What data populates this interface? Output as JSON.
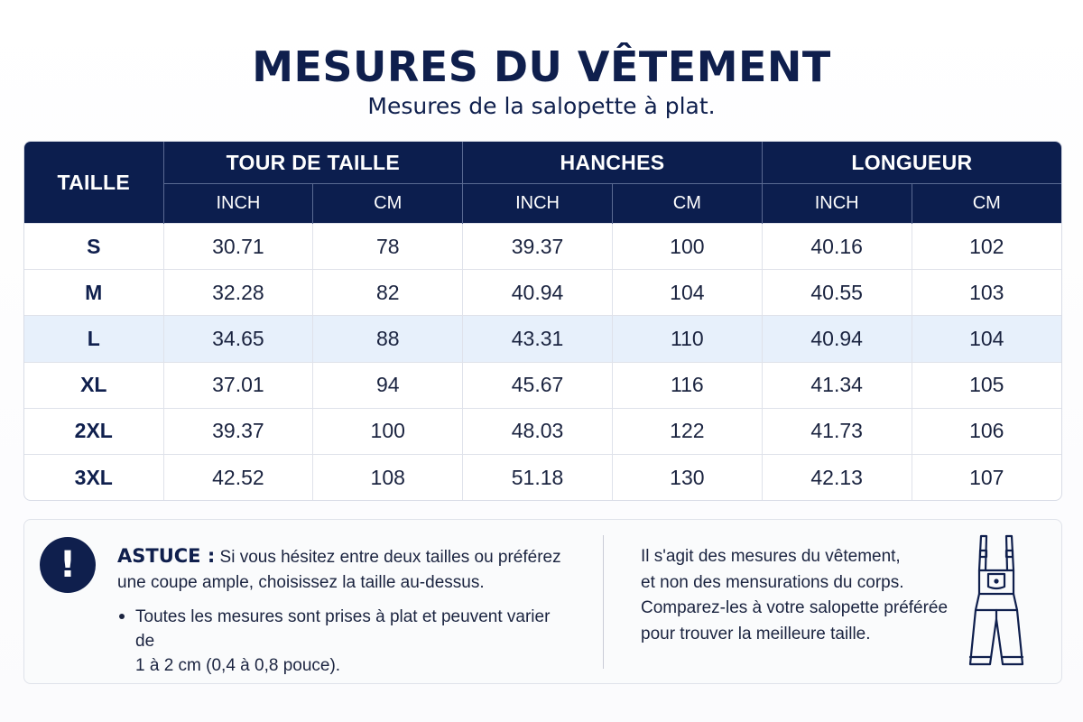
{
  "title": "MESURES DU VÊTEMENT",
  "subtitle": "Mesures de la salopette à plat.",
  "table": {
    "size_header": "TAILLE",
    "groups": [
      "TOUR DE TAILLE",
      "HANCHES",
      "LONGUEUR"
    ],
    "units": [
      "INCH",
      "CM",
      "INCH",
      "CM",
      "INCH",
      "CM"
    ],
    "highlight_color": "#e7f0fb",
    "header_color": "#0c1e4e",
    "rows": [
      {
        "size": "S",
        "values": [
          "30.71",
          "78",
          "39.37",
          "100",
          "40.16",
          "102"
        ]
      },
      {
        "size": "M",
        "values": [
          "32.28",
          "82",
          "40.94",
          "104",
          "40.55",
          "103"
        ]
      },
      {
        "size": "L",
        "values": [
          "34.65",
          "88",
          "43.31",
          "110",
          "40.94",
          "104"
        ],
        "highlighted": true
      },
      {
        "size": "XL",
        "values": [
          "37.01",
          "94",
          "45.67",
          "116",
          "41.34",
          "105"
        ]
      },
      {
        "size": "2XL",
        "values": [
          "39.37",
          "100",
          "48.03",
          "122",
          "41.73",
          "106"
        ]
      },
      {
        "size": "3XL",
        "values": [
          "42.52",
          "108",
          "51.18",
          "130",
          "42.13",
          "107"
        ]
      }
    ]
  },
  "tip": {
    "icon": "exclamation-icon",
    "label": "ASTUCE :",
    "text_line1": "Si vous hésitez entre deux tailles ou préférez",
    "text_line2": "une coupe ample, choisissez la taille au-dessus.",
    "bullet_line1": "Toutes les mesures sont prises à plat et peuvent varier de",
    "bullet_line2": "1 à 2 cm (0,4 à 0,8 pouce)."
  },
  "note": {
    "line1": "Il s'agit des mesures du vêtement,",
    "line2": "et non des mensurations du corps.",
    "line3": "Comparez-les à votre salopette préférée",
    "line4": "pour trouver la meilleure taille.",
    "icon": "overalls-icon"
  }
}
